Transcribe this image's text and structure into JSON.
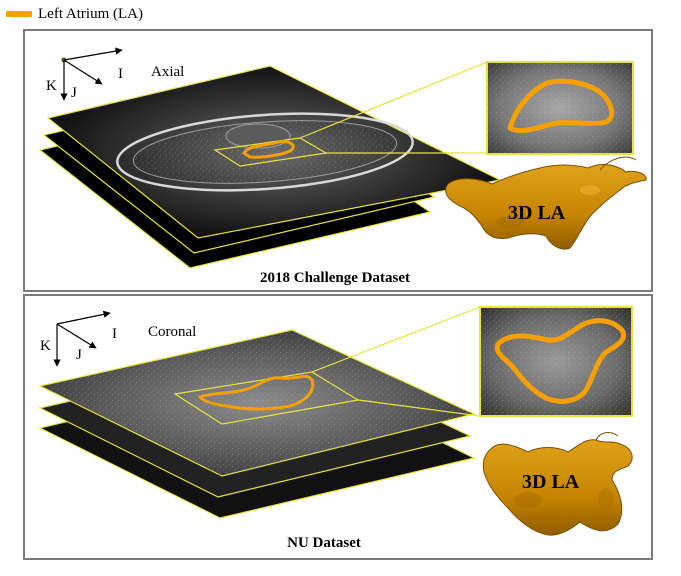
{
  "legend": {
    "label": "Left Atrium (LA)",
    "swatch_color": "#f5a400"
  },
  "colors": {
    "la_orange": "#f5a000",
    "la_model": "#c98a00",
    "slice_outline": "#e8e23a",
    "panel_border": "#7a7a7a"
  },
  "panels": [
    {
      "view": "Axial",
      "axes": {
        "k": "K",
        "j": "J",
        "i": "I"
      },
      "model_label": "3D LA",
      "caption": "2018 Challenge Dataset"
    },
    {
      "view": "Coronal",
      "axes": {
        "k": "K",
        "j": "J",
        "i": "I"
      },
      "model_label": "3D LA",
      "caption": "NU Dataset"
    }
  ]
}
